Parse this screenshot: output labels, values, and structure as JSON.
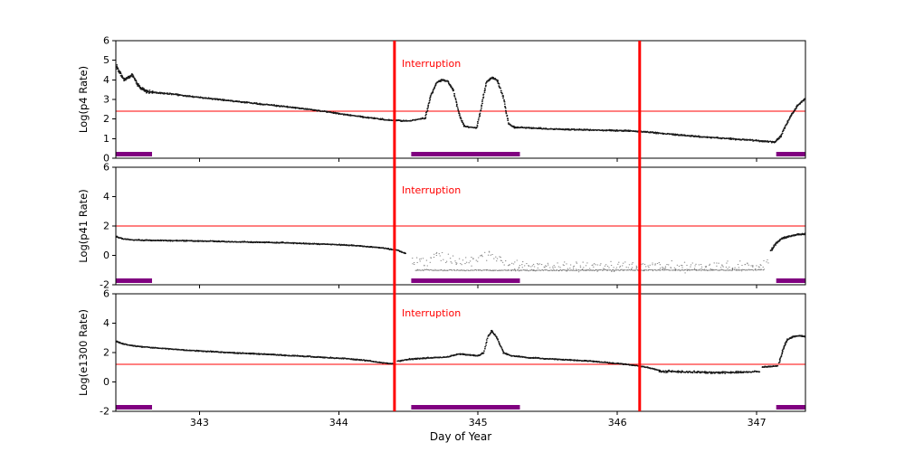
{
  "chart_data": {
    "type": "scatter",
    "title": "",
    "xlabel": "Day of Year",
    "xlim": [
      342.4,
      347.35
    ],
    "xticks": [
      343,
      344,
      345,
      346,
      347
    ],
    "interruption_label": "Interruption",
    "interruption_lines_x": [
      344.4,
      346.16
    ],
    "coverage_bars": [
      [
        342.4,
        342.66
      ],
      [
        344.52,
        345.3
      ],
      [
        347.14,
        347.35
      ]
    ],
    "colors": {
      "accent_red": "#ff0000",
      "marker_purple": "#800080",
      "points_black": "#000000",
      "axis_black": "#000000"
    },
    "panels": [
      {
        "ylabel": "Log(p4 Rate)",
        "ylim": [
          0,
          6
        ],
        "yticks": [
          0,
          1,
          2,
          3,
          4,
          5,
          6
        ],
        "threshold": 2.4,
        "segments": [
          {
            "noise": 0.12,
            "density": 520,
            "points": [
              [
                342.4,
                4.72
              ],
              [
                342.43,
                4.35
              ],
              [
                342.46,
                4.0
              ],
              [
                342.49,
                4.15
              ],
              [
                342.52,
                4.25
              ],
              [
                342.55,
                3.8
              ],
              [
                342.58,
                3.55
              ],
              [
                342.62,
                3.42
              ],
              [
                342.66,
                3.36
              ]
            ]
          },
          {
            "noise": 0.045,
            "density": 300,
            "points": [
              [
                342.66,
                3.36
              ],
              [
                342.8,
                3.28
              ],
              [
                343.0,
                3.1
              ],
              [
                343.2,
                2.95
              ],
              [
                343.4,
                2.8
              ],
              [
                343.6,
                2.65
              ],
              [
                343.8,
                2.48
              ],
              [
                344.0,
                2.28
              ],
              [
                344.2,
                2.08
              ],
              [
                344.35,
                1.95
              ],
              [
                344.5,
                1.9
              ],
              [
                344.62,
                2.05
              ]
            ]
          },
          {
            "noise": 0.06,
            "density": 430,
            "points": [
              [
                344.62,
                2.05
              ],
              [
                344.66,
                3.2
              ],
              [
                344.7,
                3.85
              ],
              [
                344.74,
                4.0
              ],
              [
                344.78,
                3.92
              ],
              [
                344.82,
                3.5
              ],
              [
                344.86,
                2.3
              ],
              [
                344.9,
                1.62
              ]
            ]
          },
          {
            "noise": 0.04,
            "density": 300,
            "points": [
              [
                344.9,
                1.62
              ],
              [
                344.99,
                1.55
              ]
            ]
          },
          {
            "noise": 0.06,
            "density": 430,
            "points": [
              [
                344.99,
                1.55
              ],
              [
                345.03,
                2.9
              ],
              [
                345.06,
                3.9
              ],
              [
                345.1,
                4.12
              ],
              [
                345.14,
                3.95
              ],
              [
                345.18,
                3.1
              ],
              [
                345.22,
                1.75
              ],
              [
                345.26,
                1.58
              ]
            ]
          },
          {
            "noise": 0.05,
            "density": 280,
            "points": [
              [
                345.26,
                1.58
              ],
              [
                345.5,
                1.5
              ],
              [
                345.8,
                1.44
              ],
              [
                346.1,
                1.4
              ],
              [
                346.3,
                1.28
              ],
              [
                346.55,
                1.12
              ],
              [
                346.8,
                1.0
              ],
              [
                347.0,
                0.9
              ],
              [
                347.13,
                0.82
              ]
            ]
          },
          {
            "noise": 0.06,
            "density": 430,
            "points": [
              [
                347.13,
                0.84
              ],
              [
                347.17,
                1.1
              ],
              [
                347.21,
                1.7
              ],
              [
                347.25,
                2.25
              ],
              [
                347.29,
                2.65
              ],
              [
                347.33,
                2.95
              ],
              [
                347.35,
                3.05
              ]
            ]
          }
        ]
      },
      {
        "ylabel": "Log(p41 Rate)",
        "ylim": [
          -2,
          6
        ],
        "yticks": [
          -2,
          0,
          2,
          4,
          6
        ],
        "threshold": 2.0,
        "segments": [
          {
            "noise": 0.05,
            "density": 300,
            "points": [
              [
                342.4,
                1.28
              ],
              [
                342.45,
                1.12
              ],
              [
                342.52,
                1.05
              ],
              [
                342.7,
                1.02
              ],
              [
                343.0,
                0.98
              ],
              [
                343.3,
                0.92
              ],
              [
                343.6,
                0.86
              ],
              [
                343.9,
                0.76
              ],
              [
                344.1,
                0.68
              ],
              [
                344.3,
                0.52
              ],
              [
                344.42,
                0.35
              ],
              [
                344.48,
                0.12
              ]
            ]
          },
          {
            "noise": 0.5,
            "density": 110,
            "opacity": 0.45,
            "size": 1.1,
            "xjitter": 0.02,
            "points": [
              [
                344.52,
                -0.35
              ],
              [
                344.62,
                -0.5
              ],
              [
                344.7,
                0.0
              ],
              [
                344.78,
                -0.25
              ],
              [
                344.9,
                -0.55
              ],
              [
                345.0,
                -0.25
              ],
              [
                345.06,
                0.1
              ],
              [
                345.14,
                -0.35
              ],
              [
                345.25,
                -0.65
              ],
              [
                345.5,
                -0.75
              ],
              [
                346.0,
                -0.78
              ],
              [
                346.5,
                -0.78
              ],
              [
                347.0,
                -0.75
              ],
              [
                347.08,
                -0.55
              ]
            ]
          },
          {
            "noise": 0.06,
            "density": 150,
            "opacity": 0.5,
            "size": 1.1,
            "points": [
              [
                344.55,
                -1.0
              ],
              [
                345.2,
                -1.02
              ],
              [
                346.0,
                -1.0
              ],
              [
                346.8,
                -1.0
              ],
              [
                347.05,
                -0.98
              ]
            ]
          },
          {
            "noise": 0.07,
            "density": 430,
            "points": [
              [
                347.1,
                0.3
              ],
              [
                347.14,
                0.85
              ],
              [
                347.18,
                1.15
              ],
              [
                347.24,
                1.32
              ],
              [
                347.3,
                1.42
              ],
              [
                347.35,
                1.46
              ]
            ]
          }
        ]
      },
      {
        "ylabel": "Log(e1300 Rate)",
        "ylim": [
          -2,
          6
        ],
        "yticks": [
          -2,
          0,
          2,
          4,
          6
        ],
        "threshold": 1.2,
        "segments": [
          {
            "noise": 0.05,
            "density": 300,
            "points": [
              [
                342.4,
                2.78
              ],
              [
                342.45,
                2.58
              ],
              [
                342.52,
                2.46
              ],
              [
                342.65,
                2.34
              ],
              [
                342.85,
                2.2
              ],
              [
                343.05,
                2.08
              ],
              [
                343.3,
                1.96
              ],
              [
                343.55,
                1.85
              ],
              [
                343.8,
                1.72
              ],
              [
                344.0,
                1.62
              ],
              [
                344.15,
                1.52
              ],
              [
                344.3,
                1.32
              ],
              [
                344.4,
                1.22
              ]
            ]
          },
          {
            "noise": 0.05,
            "density": 300,
            "points": [
              [
                344.42,
                1.42
              ],
              [
                344.52,
                1.56
              ],
              [
                344.65,
                1.64
              ],
              [
                344.78,
                1.7
              ],
              [
                344.86,
                1.92
              ],
              [
                344.92,
                1.85
              ],
              [
                345.0,
                1.78
              ],
              [
                345.04,
                2.0
              ],
              [
                345.07,
                3.1
              ],
              [
                345.1,
                3.5
              ],
              [
                345.14,
                2.9
              ],
              [
                345.18,
                2.0
              ],
              [
                345.24,
                1.78
              ],
              [
                345.35,
                1.66
              ],
              [
                345.55,
                1.55
              ],
              [
                345.8,
                1.42
              ],
              [
                346.05,
                1.22
              ],
              [
                346.2,
                1.02
              ],
              [
                346.3,
                0.8
              ]
            ]
          },
          {
            "noise": 0.1,
            "density": 260,
            "points": [
              [
                346.3,
                0.74
              ],
              [
                346.5,
                0.68
              ],
              [
                346.7,
                0.64
              ],
              [
                346.9,
                0.66
              ],
              [
                347.02,
                0.72
              ]
            ]
          },
          {
            "noise": 0.05,
            "density": 300,
            "points": [
              [
                347.04,
                1.0
              ],
              [
                347.1,
                1.05
              ],
              [
                347.15,
                1.1
              ]
            ]
          },
          {
            "noise": 0.05,
            "density": 430,
            "points": [
              [
                347.16,
                1.3
              ],
              [
                347.19,
                2.3
              ],
              [
                347.22,
                2.9
              ],
              [
                347.26,
                3.08
              ],
              [
                347.31,
                3.15
              ],
              [
                347.35,
                3.08
              ]
            ]
          }
        ]
      }
    ]
  }
}
